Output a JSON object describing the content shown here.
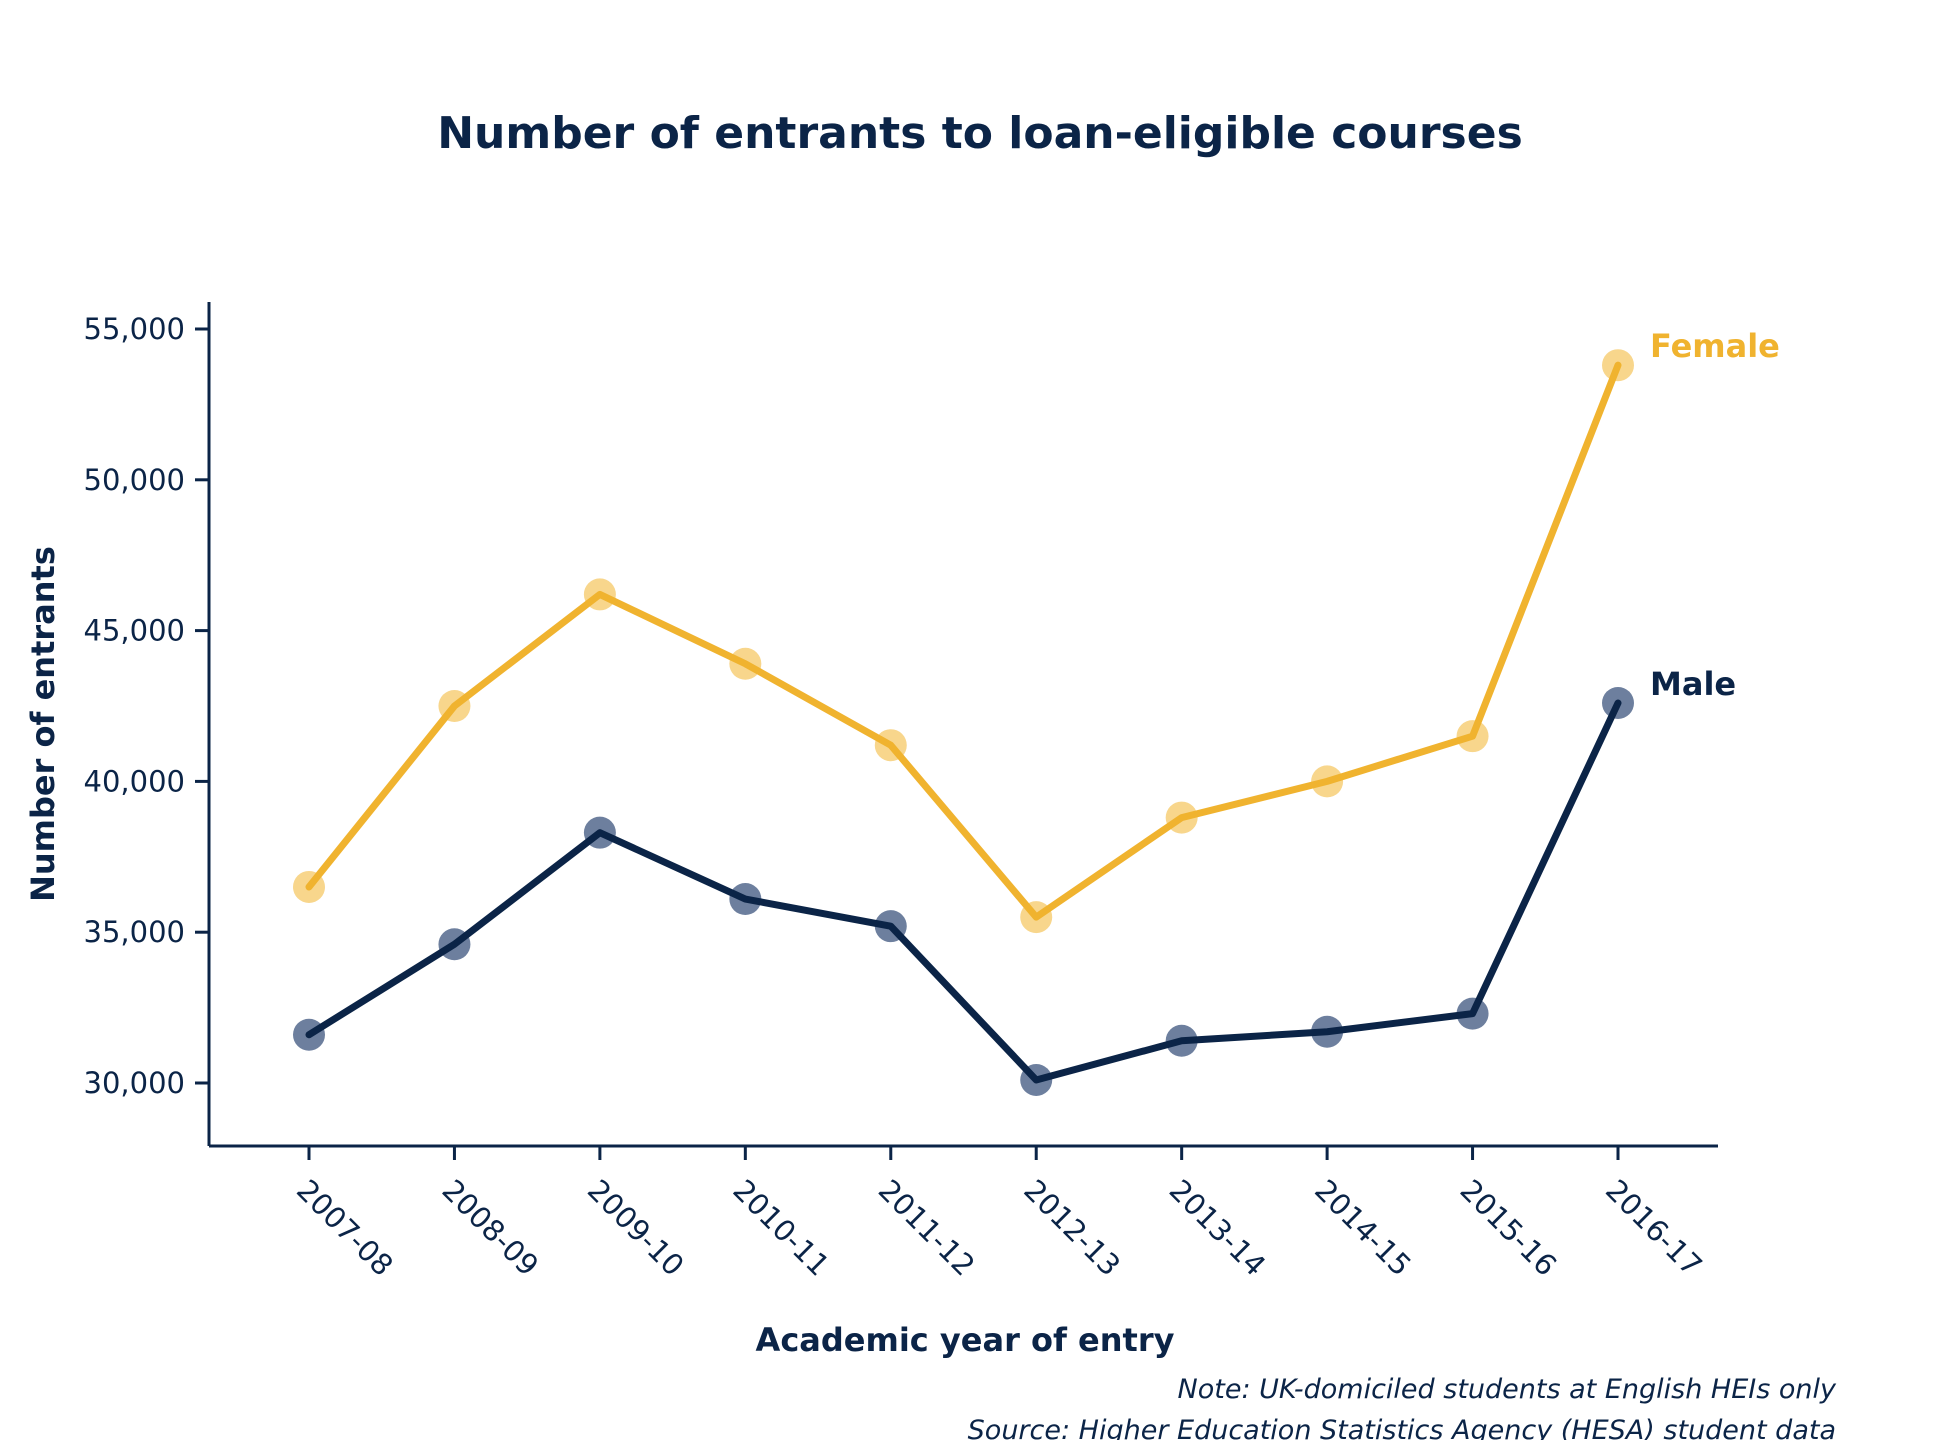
{
  "chart_data": {
    "type": "line",
    "title": "Number of entrants to loan-eligible courses",
    "xlabel": "Academic year of entry",
    "ylabel": "Number of entrants",
    "categories": [
      "2007-08",
      "2008-09",
      "2009-10",
      "2010-11",
      "2011-12",
      "2012-13",
      "2013-14",
      "2014-15",
      "2015-16",
      "2016-17"
    ],
    "yticks": [
      "30,000",
      "35,000",
      "40,000",
      "45,000",
      "50,000",
      "55,000"
    ],
    "ytick_values": [
      30000,
      35000,
      40000,
      45000,
      50000,
      55000
    ],
    "ylim": [
      28000,
      56000
    ],
    "grid": false,
    "legend": "direct labels at line ends",
    "series": [
      {
        "name": "Female",
        "color": "#f0b32f",
        "marker_color": "#f8d68c",
        "values": [
          36500,
          42500,
          46200,
          43900,
          41200,
          35500,
          38800,
          40000,
          41500,
          53800
        ]
      },
      {
        "name": "Male",
        "color": "#0b2447",
        "marker_color": "#6d7f9e",
        "values": [
          31600,
          34600,
          38300,
          36100,
          35200,
          30100,
          31400,
          31700,
          32300,
          42600
        ]
      }
    ],
    "notes": [
      "Note: UK-domiciled students at English HEIs only",
      "Source: Higher Education Statistics Agency (HESA) student data"
    ]
  }
}
